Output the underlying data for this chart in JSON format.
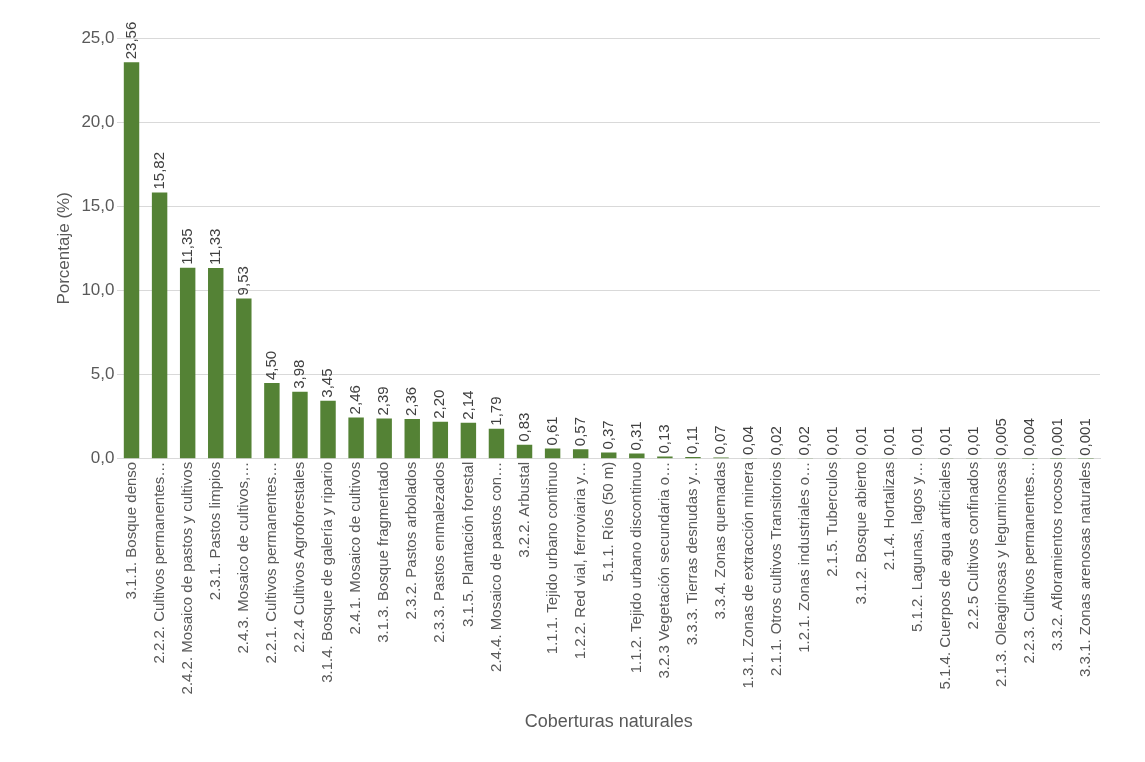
{
  "chart_data": {
    "type": "bar",
    "xlabel": "Coberturas naturales",
    "ylabel": "Porcentaje (%)",
    "categories": [
      "3.1.1. Bosque denso",
      "2.2.2. Cultivos permanentes…",
      "2.4.2. Mosaico de pastos y cultivos",
      "2.3.1. Pastos limpios",
      "2.4.3. Mosaico de cultivos,…",
      "2.2.1. Cultivos permanentes…",
      "2.2.4 Cultivos Agroforestales",
      "3.1.4. Bosque de galería y ripario",
      "2.4.1. Mosaico de cultivos",
      "3.1.3. Bosque fragmentado",
      "2.3.2. Pastos arbolados",
      "2.3.3. Pastos enmalezados",
      "3.1.5. Plantación forestal",
      "2.4.4. Mosaico de pastos con…",
      "3.2.2. Arbustal",
      "1.1.1. Tejido urbano continuo",
      "1.2.2. Red vial, ferroviaria y…",
      "5.1.1. Ríos (50 m)",
      "1.1.2. Tejido urbano discontinuo",
      "3.2.3 Vegetación secundaria o…",
      "3.3.3. Tierras desnudas y…",
      "3.3.4. Zonas quemadas",
      "1.3.1. Zonas de extracción minera",
      "2.1.1. Otros cultivos Transitorios",
      "1.2.1. Zonas industriales o…",
      "2.1.5. Tuberculos",
      "3.1.2. Bosque abierto",
      "2.1.4. Hortalizas",
      "5.1.2. Lagunas, lagos y…",
      "5.1.4. Cuerpos de agua artificiales",
      "2.2.5 Cultivos confinados",
      "2.1.3. Oleaginosas y leguminosas",
      "2.2.3. Cultivos permanentes…",
      "3.3.2. Afloramientos rocosos",
      "3.3.1. Zonas arenosas naturales"
    ],
    "values": [
      23.56,
      15.82,
      11.35,
      11.33,
      9.53,
      4.5,
      3.98,
      3.45,
      2.46,
      2.39,
      2.36,
      2.2,
      2.14,
      1.79,
      0.83,
      0.61,
      0.57,
      0.37,
      0.31,
      0.13,
      0.11,
      0.07,
      0.04,
      0.02,
      0.02,
      0.01,
      0.01,
      0.01,
      0.01,
      0.01,
      0.01,
      0.005,
      0.004,
      0.001,
      0.001
    ],
    "value_labels": [
      "23,56",
      "15,82",
      "11,35",
      "11,33",
      "9,53",
      "4,50",
      "3,98",
      "3,45",
      "2,46",
      "2,39",
      "2,36",
      "2,20",
      "2,14",
      "1,79",
      "0,83",
      "0,61",
      "0,57",
      "0,37",
      "0,31",
      "0,13",
      "0,11",
      "0,07",
      "0,04",
      "0,02",
      "0,02",
      "0,01",
      "0,01",
      "0,01",
      "0,01",
      "0,01",
      "0,01",
      "0,005",
      "0,004",
      "0,001",
      "0,001"
    ],
    "color": "#548235",
    "ylim": [
      0,
      25
    ],
    "yticks": [
      {
        "value": 0,
        "label": "0,0"
      },
      {
        "value": 5,
        "label": "5,0"
      },
      {
        "value": 10,
        "label": "10,0"
      },
      {
        "value": 15,
        "label": "15,0"
      },
      {
        "value": 20,
        "label": "20,0"
      },
      {
        "value": 25,
        "label": "25,0"
      }
    ],
    "grid": "y",
    "legend": false
  }
}
